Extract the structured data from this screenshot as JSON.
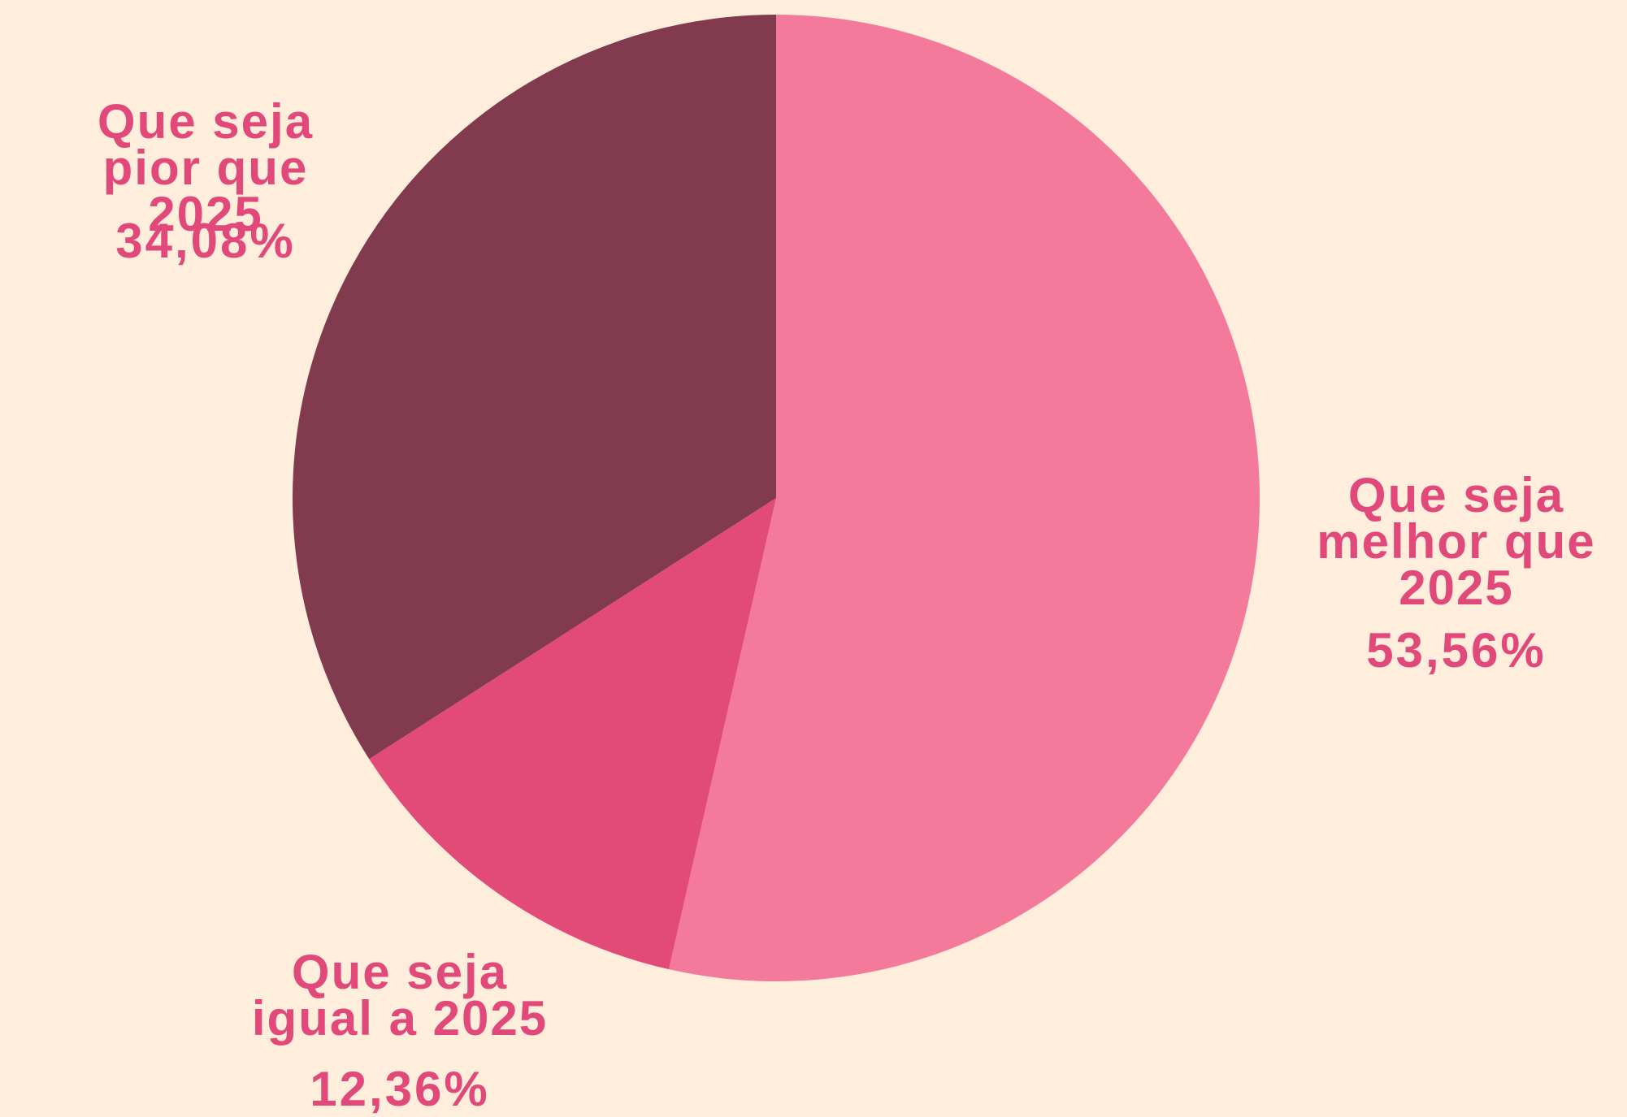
{
  "chart_data": {
    "type": "pie",
    "categories": [
      "Que seja melhor que 2025",
      "Que seja igual a 2025",
      "Que seja pior que 2025"
    ],
    "values": [
      53.56,
      12.36,
      34.08
    ],
    "value_labels": [
      "53,56%",
      "12,36%",
      "34,08%"
    ],
    "colors": [
      "#f47a9c",
      "#e24b77",
      "#823a4e"
    ]
  }
}
